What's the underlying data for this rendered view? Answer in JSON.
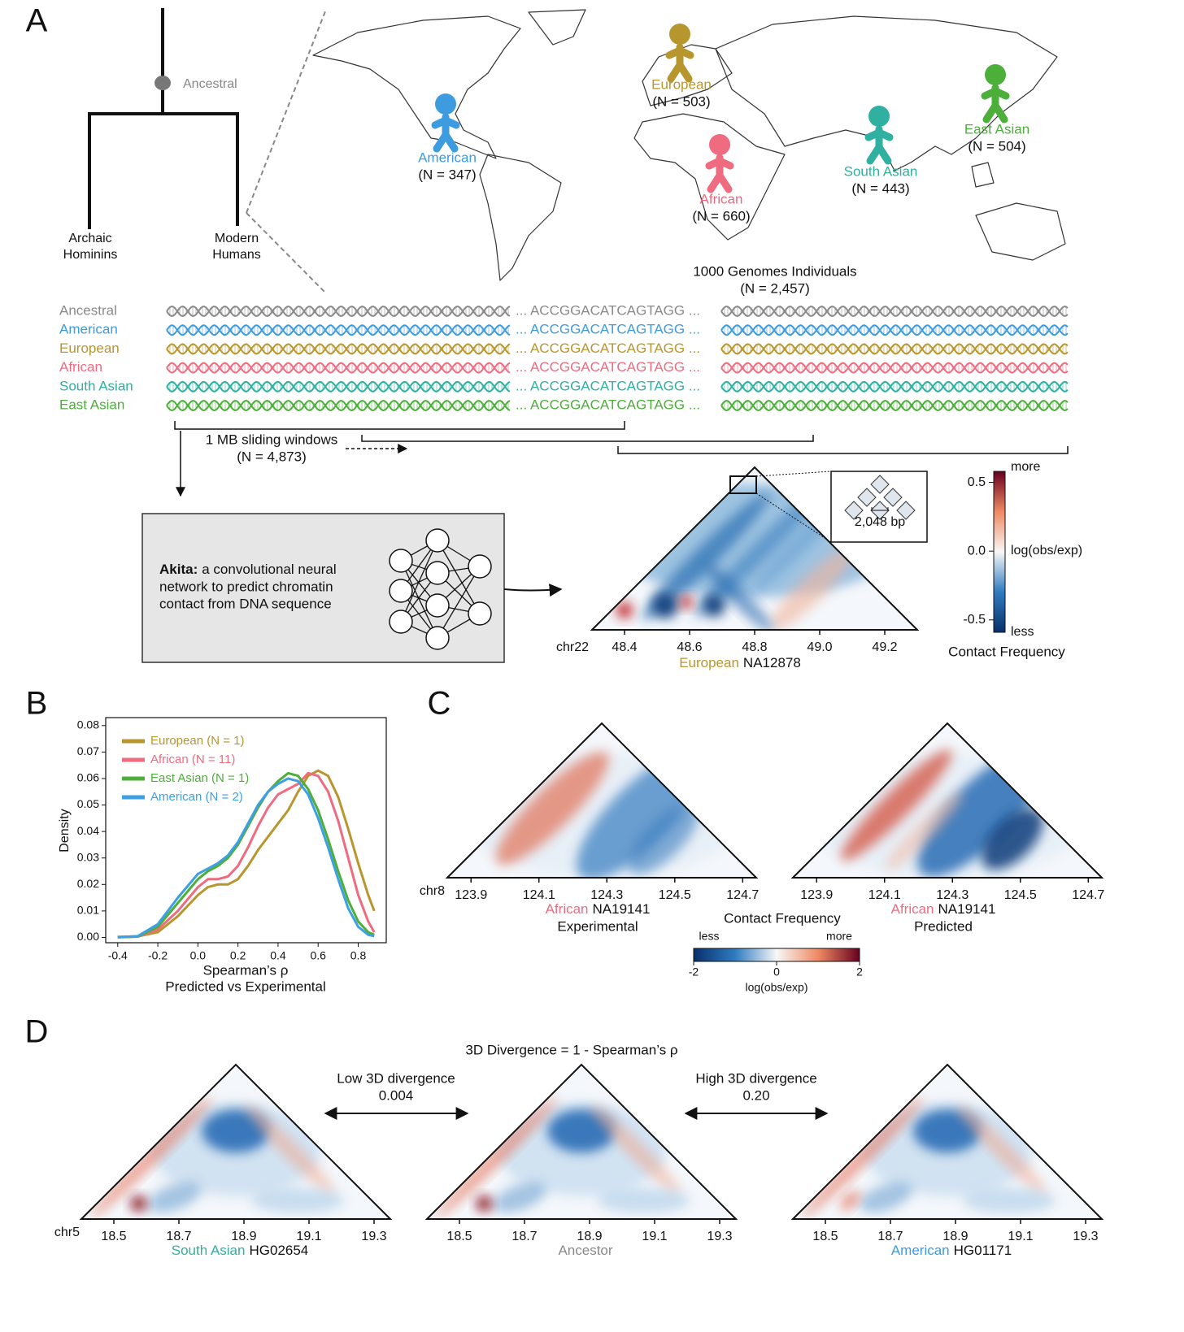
{
  "figure": {
    "panel_labels": [
      "A",
      "B",
      "C",
      "D"
    ],
    "tree": {
      "root": "Ancestral",
      "left": [
        "Archaic",
        "Hominins"
      ],
      "right": [
        "Modern",
        "Humans"
      ]
    },
    "populations": [
      {
        "name": "American",
        "n": "(N = 347)",
        "color": "#3d9be0"
      },
      {
        "name": "European",
        "n": "(N = 503)",
        "color": "#b8962e"
      },
      {
        "name": "African",
        "n": "(N = 660)",
        "color": "#ef6b80"
      },
      {
        "name": "South Asian",
        "n": "(N = 443)",
        "color": "#2fb0a0"
      },
      {
        "name": "East Asian",
        "n": "(N = 504)",
        "color": "#4caf3a"
      }
    ],
    "cohort": [
      "1000 Genomes Individuals",
      "(N = 2,457)"
    ],
    "sequence": "... ACCGGACATCAGTAGG ...",
    "sequence_rows": [
      {
        "name": "Ancestral",
        "color": "#8a8a8a"
      },
      {
        "name": "American",
        "color": "#3d9be0"
      },
      {
        "name": "European",
        "color": "#b8962e"
      },
      {
        "name": "African",
        "color": "#ef6b80"
      },
      {
        "name": "South Asian",
        "color": "#2fb0a0"
      },
      {
        "name": "East Asian",
        "color": "#4caf3a"
      }
    ],
    "windows": [
      "1 MB sliding windows",
      "(N = 4,873)"
    ],
    "model": {
      "name": "Akita:",
      "lines": [
        "a convolutional neural",
        "network to predict chromatin",
        "contact from DNA sequence"
      ]
    },
    "heatmap_a": {
      "chrom": "chr22",
      "xlim": [
        48.3,
        49.3
      ],
      "xticks": [
        48.4,
        48.6,
        48.8,
        {
          "value": 49,
          "label": "49.0"
        },
        49.2
      ],
      "population": "European",
      "population_color": "#b8962e",
      "sample": "NA12878",
      "inset": "2,048 bp"
    },
    "colorbar_a": {
      "title": "Contact Frequency",
      "label": "log(obs/exp)",
      "high": "more",
      "low": "less",
      "lim": [
        -0.59,
        0.58
      ],
      "ticks": [
        0.5,
        {
          "value": 0,
          "label": "0.0"
        },
        -0.5
      ]
    },
    "heatmap_c": {
      "chrom": "chr8",
      "xlim": [
        123.83,
        124.74
      ],
      "xticks": [
        123.9,
        124.1,
        124.3,
        124.5,
        124.7
      ],
      "maps": [
        {
          "population": "African",
          "population_color": "#ef6b80",
          "sample": "NA19141",
          "kind": "Experimental"
        },
        {
          "population": "African",
          "population_color": "#ef6b80",
          "sample": "NA19141",
          "kind": "Predicted"
        }
      ]
    },
    "colorbar_c": {
      "title": "Contact Frequency",
      "label": "log(obs/exp)",
      "high": "more",
      "low": "less",
      "lim": [
        -2,
        2
      ],
      "ticks": [
        -2,
        0,
        2
      ]
    },
    "panel_d": {
      "title": "3D Divergence = 1 - Spearman’s ρ",
      "comparisons": [
        {
          "label": "Low 3D divergence",
          "value": "0.004"
        },
        {
          "label": "High 3D divergence",
          "value": "0.20"
        }
      ],
      "chrom": "chr5",
      "xlim": [
        18.4,
        19.35
      ],
      "xticks": [
        18.5,
        18.7,
        18.9,
        19.1,
        19.3
      ],
      "maps": [
        {
          "population": "South Asian",
          "population_color": "#2fb0a0",
          "sample": "HG02654"
        },
        {
          "population": "Ancestor",
          "population_color": "#8a8a8a"
        },
        {
          "population": "American",
          "population_color": "#3d9be0",
          "sample": "HG01171"
        }
      ]
    }
  },
  "chart_data": {
    "type": "line",
    "xlabel": [
      "Spearman’s ρ",
      "Predicted vs Experimental"
    ],
    "ylabel": "Density",
    "x": [
      -0.4,
      -0.3,
      -0.2,
      -0.1,
      0,
      0.05,
      0.1,
      0.15,
      0.2,
      0.25,
      0.3,
      0.35,
      0.4,
      0.45,
      0.5,
      0.55,
      0.6,
      0.65,
      0.7,
      0.75,
      0.8,
      0.85,
      0.88
    ],
    "series": [
      {
        "name": "European (N = 1)",
        "color": "#b8962e",
        "values": [
          0.0002,
          0.0004,
          0.002,
          0.008,
          0.016,
          0.019,
          0.02,
          0.02,
          0.022,
          0.027,
          0.033,
          0.038,
          0.043,
          0.048,
          0.055,
          0.061,
          0.063,
          0.061,
          0.053,
          0.041,
          0.028,
          0.016,
          0.01
        ]
      },
      {
        "name": "African (N = 11)",
        "color": "#ef6b80",
        "values": [
          0.0001,
          0.0003,
          0.003,
          0.01,
          0.019,
          0.022,
          0.022,
          0.023,
          0.027,
          0.034,
          0.042,
          0.049,
          0.054,
          0.056,
          0.058,
          0.062,
          0.061,
          0.055,
          0.044,
          0.03,
          0.016,
          0.006,
          0.002
        ]
      },
      {
        "name": "East Asian (N = 1)",
        "color": "#4caf3a",
        "values": [
          0.0001,
          0.0003,
          0.004,
          0.013,
          0.022,
          0.025,
          0.027,
          0.03,
          0.035,
          0.042,
          0.049,
          0.055,
          0.059,
          0.062,
          0.061,
          0.056,
          0.048,
          0.037,
          0.025,
          0.014,
          0.006,
          0.002,
          0.001
        ]
      },
      {
        "name": "American (N = 2)",
        "color": "#3ea0e4",
        "values": [
          0.0001,
          0.0005,
          0.005,
          0.015,
          0.024,
          0.026,
          0.028,
          0.031,
          0.036,
          0.043,
          0.05,
          0.055,
          0.058,
          0.06,
          0.059,
          0.054,
          0.045,
          0.034,
          0.022,
          0.011,
          0.004,
          0.001,
          0.0005
        ]
      }
    ],
    "xlim": [
      -0.46,
      0.94
    ],
    "ylim": [
      -0.002,
      0.083
    ],
    "xticks": [
      -0.4,
      -0.2,
      {
        "value": 0,
        "label": "0.0"
      },
      0.2,
      0.4,
      0.6,
      0.8
    ],
    "yticks": [
      {
        "value": 0,
        "label": "0.00"
      },
      0.01,
      0.02,
      0.03,
      0.04,
      0.05,
      0.06,
      0.07,
      0.08
    ],
    "legend": "upper left"
  }
}
